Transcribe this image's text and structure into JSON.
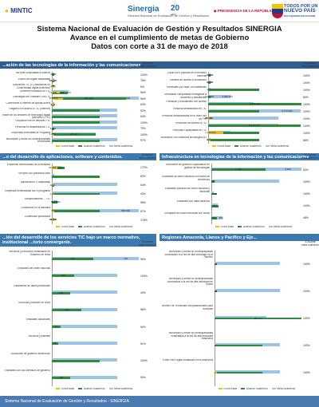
{
  "header": {
    "mintic": "MINTIC",
    "sinergia": "Sinergia",
    "sinergia_sub": "Sistema Nacional de Evaluación de Gestión y Resultados",
    "twenty": "20",
    "twenty_sub": "años",
    "presidencia": "PRESIDENCIA DE LA REPÚBLICA",
    "todos1": "TODOS POR UN",
    "todos2": "NUEVO PAÍS",
    "todos3": "PAZ EQUIDAD EDUCACIÓN"
  },
  "title": {
    "line1": "Sistema Nacional de Evaluación de Gestión y Resultados SINERGIA",
    "line2": "Avance en el cumplimiento de metas de Gobierno",
    "line3": "Datos con corte a 31 de mayo de 2018"
  },
  "legend": {
    "base": "Línea base",
    "avance": "Avance cuatrienio",
    "meta": "Meta cuatrienio",
    "pct_header": "% Avance meta cuatrienio"
  },
  "colors": {
    "base": "#f0c000",
    "avance": "#2e8b3a",
    "meta": "#9dc3e6",
    "avance_alt": "#1f6db3"
  },
  "footer": "Sistema Nacional de Evaluación de Gestión y Resultados - SINERGIA",
  "sections": [
    {
      "title": "...ación de las tecnologías de la información y las comunicaciones",
      "pct_header": "% Avance meta cuatrienio",
      "rows": [
        {
          "label": "MiPyme conectadas a Internet",
          "base": "",
          "avance": "61%",
          "meta": "70%",
          "pct": "100%"
        },
        {
          "label": "Edcion sin digital totalizadas",
          "base": "6.540",
          "avance": "7.110",
          "meta": "7.621",
          "pct": "76%"
        },
        {
          "label": "Soluciones TIC y Consultorías en Conectividad digital (millones)",
          "base": "2,1",
          "avance": "2,5",
          "meta": "3,5",
          "pct": "5%"
        },
        {
          "label": "Docentes formados en TIC",
          "base": "73.900",
          "avance": "144.903",
          "meta": "157.773",
          "pct": "96%"
        },
        {
          "label": "Descargas del Software Gov/TIC",
          "base": "100.000",
          "avance": "681.195",
          "meta": "800.000",
          "pct": "96%"
        },
        {
          "label": "Conexiones a Internet de Banda Ancha",
          "base": "9,7",
          "avance": "15,4",
          "meta": "27",
          "pct": "63%"
        },
        {
          "label": "Hogares con acceso a TIC (Internet)",
          "base": "",
          "avance": "",
          "meta": "",
          "pct": "52%"
        },
        {
          "label": "Índice de los sectores de tecnología digital (servicios y TIC)",
          "base": "",
          "avance": "",
          "meta": "",
          "pct": "64%"
        },
        {
          "label": "Ocupación fue en sectores TIC",
          "base": "",
          "avance": "",
          "meta": "",
          "pct": "100%"
        },
        {
          "label": "Personas en alfabetización TIC",
          "base": "",
          "avance": "8.566",
          "meta": "",
          "pct": "79%"
        },
        {
          "label": "Empresas vinculadas al Programa",
          "base": "1.050",
          "avance": "405.147",
          "meta": "400.000",
          "pct": "100%"
        },
        {
          "label": "Municipios y Áreas No Municipalizadas conectadas",
          "base": "",
          "avance": "",
          "meta": "",
          "pct": "97%"
        }
      ],
      "rows_right": [
        {
          "label": "Zonas Wi-fi públicas en el territorio nacional",
          "base": "",
          "avance": "1.472",
          "meta": "1.000",
          "pct": "100%"
        },
        {
          "label": "Trámites de acceso a contenidos",
          "base": "",
          "avance": "2.620",
          "meta": "1.000",
          "pct": "100%"
        },
        {
          "label": "Terminales por cada 100 habitantes",
          "base": "",
          "avance": "",
          "meta": "2.056",
          "pct": "100%"
        },
        {
          "label": "Terminales compartidas entregadas a docentes y estudiantes",
          "base": "",
          "avance": "242.445",
          "meta": "2.000.000",
          "pct": "84%"
        },
        {
          "label": "Población y estudiantes con acceso",
          "base": "",
          "avance": "8.213.251",
          "meta": "4.000.000",
          "pct": "100%"
        },
        {
          "label": "Personal sensibilizado en TIC",
          "base": "",
          "avance": "",
          "meta": "8.172.000",
          "pct": "100%"
        },
        {
          "label": "Personas sensibilizadas en el buen uso de TIC",
          "base": "15.350",
          "avance": "34.140",
          "meta": "",
          "pct": "100%"
        },
        {
          "label": "Personas con acceso a TIC",
          "base": "",
          "avance": "8.172.477",
          "meta": "",
          "pct": "100%"
        },
        {
          "label": "Personas Capacitadas en TIC",
          "base": "1.345.000",
          "avance": "",
          "meta": "2.000.000",
          "pct": "100%"
        },
        {
          "label": "Municipios con cobertura tecnológica 4G",
          "base": "900",
          "avance": "",
          "meta": "1.115",
          "pct": "86%"
        }
      ]
    },
    {
      "title": "...o del desarrollo de aplicaciones, software y contenidos.",
      "title_right": "Infraestructura en tecnologías de la información y las comunicaciones",
      "rows": [
        {
          "label": "Empresas beneficiadas de la Iniciativa",
          "base": "50.000",
          "avance": "115.916",
          "meta": "90.000",
          "pct": "172%"
        },
        {
          "label": "MiPyme con presencia Web",
          "base": "",
          "avance": "",
          "meta": "60%",
          "pct": "62%"
        },
        {
          "label": "Aplicaciones TI adoptadas",
          "base": "100",
          "avance": "300",
          "meta": "",
          "pct": "54%"
        },
        {
          "label": "Empresas beneficiadas con el programa",
          "base": "125",
          "avance": "",
          "meta": "",
          "pct": "43%"
        },
        {
          "label": "Desarrolladores ... TIC",
          "base": "",
          "avance": "49.520",
          "meta": "51.554",
          "pct": "98%"
        },
        {
          "label": "Contenidos en la industria",
          "base": "0",
          "avance": "",
          "meta": "800.000",
          "pct": "57%"
        },
        {
          "label": "Contenidos publicados",
          "base": "2.800",
          "avance": "8.200",
          "meta": "4.600",
          "pct": "178%"
        }
      ],
      "rows_right": [
        {
          "label": "Servidores de gobierno capacitados en gestión de tecnologías",
          "base": "",
          "avance": "2.156",
          "meta": "3.600",
          "pct": "62%"
        },
        {
          "label": "Entidades de orden nacional con sellos de excelencia",
          "base": "",
          "avance": "130",
          "meta": "",
          "pct": "100%"
        },
        {
          "label": "Entidades públicas del orden nacional y territorial",
          "base": "",
          "avance": "226",
          "meta": "100",
          "pct": "100%"
        },
        {
          "label": "Entidades con datos abiertos",
          "base": "",
          "avance": "287",
          "meta": "257",
          "pct": "100%"
        },
        {
          "label": "Entidades del orden territorial con sellos",
          "base": "",
          "avance": "216",
          "meta": "450",
          "pct": "48%"
        }
      ]
    },
    {
      "title": "...ión del desarrollo de los servicios TIC bajo un marco normativo, institucional ...torio convergente.",
      "title_right": "Regiones Amazonía, Llanos y Pacífico y Eje...",
      "rows": [
        {
          "label": "Servicios y productos certificados en Gobierno en línea",
          "base": "",
          "avance": "341",
          "meta": "710",
          "pct": "96%"
        },
        {
          "label": "Entidades del orden nacional",
          "base": "",
          "avance": "183",
          "meta": "",
          "pct": "100%"
        },
        {
          "label": "Tratamiento de datos personales",
          "base": "",
          "avance": "148",
          "meta": "",
          "pct": "49%"
        },
        {
          "label": "Servicios y trámites en línea",
          "base": "",
          "avance": "243",
          "meta": "",
          "pct": "98%"
        },
        {
          "label": "Entidades nacionales",
          "base": "",
          "avance": "71",
          "meta": "",
          "pct": "92%"
        },
        {
          "label": "Servicios y trámites",
          "base": "",
          "avance": "51",
          "meta": "",
          "pct": "91%"
        },
        {
          "label": "Soluciones de gobierno electrónico",
          "base": "",
          "avance": "",
          "meta": "",
          "pct": "100%"
        },
        {
          "label": "Entidades con uso intensivo de gobierno",
          "base": "",
          "avance": "153",
          "meta": "",
          "pct": "94%"
        }
      ],
      "rows_right": [
        {
          "label": "Municipios y Áreas No Municipalizadas conectados a la red de alta velocidad en el Pacífico",
          "base": "",
          "avance": "12",
          "meta": "",
          "pct": "100%"
        },
        {
          "label": "Municipios y Áreas No Municipalizadas conectados a la red de alta velocidad en Llanos",
          "base": "",
          "avance": "38",
          "meta": "",
          "pct": "100%"
        },
        {
          "label": "Número de Terminales computacionales para escuelas",
          "base": "",
          "avance": "182.747",
          "meta": "108.373",
          "pct": "100%"
        },
        {
          "label": "Municipios y Áreas No Municipalizadas conectados a la red de alta velocidad Amazonía",
          "base": "",
          "avance": "",
          "meta": "",
          "pct": "100%"
        },
        {
          "label": "Punto Vive Digital instalados en la Amazonía",
          "base": "2",
          "avance": "",
          "meta": "",
          "pct": "100%"
        }
      ]
    }
  ]
}
